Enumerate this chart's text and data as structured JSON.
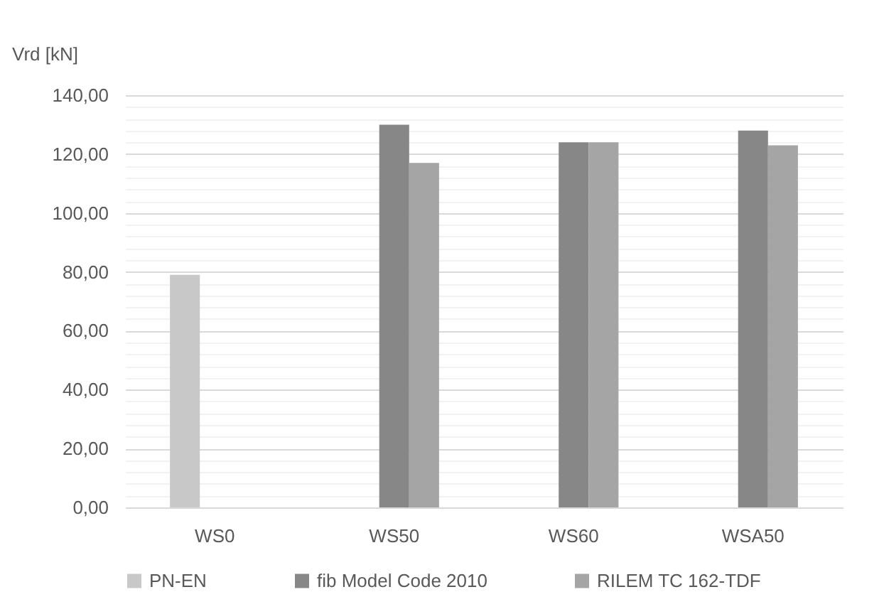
{
  "chart_data": {
    "type": "bar",
    "ylabel": "Vrd [kN]",
    "categories": [
      "WS0",
      "WS50",
      "WS60",
      "WSA50"
    ],
    "series": [
      {
        "name": "PN-EN",
        "color": "#c8c8c8",
        "values": [
          79,
          null,
          null,
          null
        ]
      },
      {
        "name": "fib Model Code 2010",
        "color": "#878787",
        "values": [
          null,
          130,
          124,
          128
        ]
      },
      {
        "name": "RILEM TC 162-TDF",
        "color": "#a5a5a5",
        "values": [
          null,
          117,
          124,
          123
        ]
      }
    ],
    "ylim": [
      0,
      140
    ],
    "yticks": [
      {
        "value": 0,
        "label": "0,00"
      },
      {
        "value": 4,
        "label": null
      },
      {
        "value": 8,
        "label": null
      },
      {
        "value": 12,
        "label": null
      },
      {
        "value": 16,
        "label": null
      },
      {
        "value": 20,
        "label": "20,00"
      },
      {
        "value": 24,
        "label": null
      },
      {
        "value": 28,
        "label": null
      },
      {
        "value": 32,
        "label": null
      },
      {
        "value": 36,
        "label": null
      },
      {
        "value": 40,
        "label": "40,00"
      },
      {
        "value": 44,
        "label": null
      },
      {
        "value": 48,
        "label": null
      },
      {
        "value": 52,
        "label": null
      },
      {
        "value": 56,
        "label": null
      },
      {
        "value": 60,
        "label": "60,00"
      },
      {
        "value": 64,
        "label": null
      },
      {
        "value": 68,
        "label": null
      },
      {
        "value": 72,
        "label": null
      },
      {
        "value": 76,
        "label": null
      },
      {
        "value": 80,
        "label": "80,00"
      },
      {
        "value": 84,
        "label": null
      },
      {
        "value": 88,
        "label": null
      },
      {
        "value": 92,
        "label": null
      },
      {
        "value": 96,
        "label": null
      },
      {
        "value": 100,
        "label": "100,00"
      },
      {
        "value": 104,
        "label": null
      },
      {
        "value": 108,
        "label": null
      },
      {
        "value": 112,
        "label": null
      },
      {
        "value": 116,
        "label": null
      },
      {
        "value": 120,
        "label": "120,00"
      },
      {
        "value": 124,
        "label": null
      },
      {
        "value": 128,
        "label": null
      },
      {
        "value": 132,
        "label": null
      },
      {
        "value": 136,
        "label": null
      },
      {
        "value": 140,
        "label": "140,00"
      }
    ],
    "grid": "y",
    "legend": "bottom"
  }
}
